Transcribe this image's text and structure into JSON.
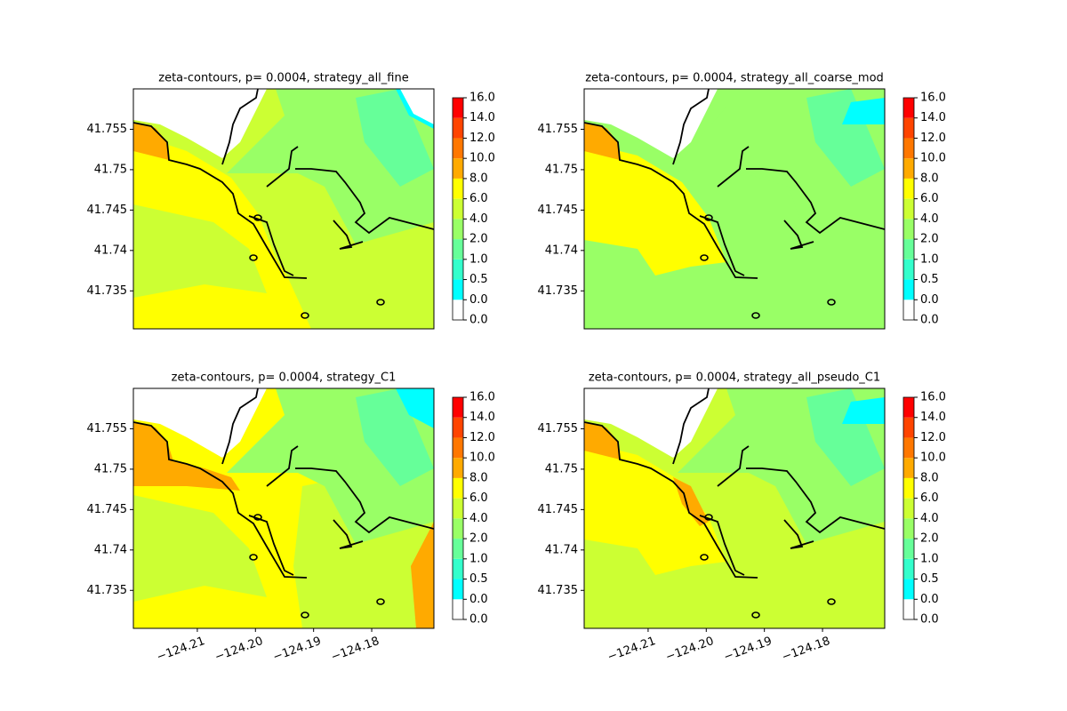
{
  "chart_data": [
    {
      "type": "contour",
      "title": "zeta-contours, p= 0.0004, strategy_all_fine",
      "xlim": [
        -124.221,
        -124.1693
      ],
      "ylim": [
        41.7303,
        41.76
      ],
      "yticks": [
        41.735,
        41.74,
        41.745,
        41.75,
        41.755
      ],
      "levels": [
        {
          "value": 0,
          "label": "0.0"
        },
        {
          "value": 0.01,
          "label": "0.0"
        },
        {
          "value": 0.5,
          "label": "0.5"
        },
        {
          "value": 1,
          "label": "1.0"
        },
        {
          "value": 2,
          "label": "2.0"
        },
        {
          "value": 4,
          "label": "4.0"
        },
        {
          "value": 6,
          "label": "6.0"
        },
        {
          "value": 8,
          "label": "8.0"
        },
        {
          "value": 10,
          "label": "10.0"
        },
        {
          "value": 12,
          "label": "12.0"
        },
        {
          "value": 14,
          "label": "14.0"
        },
        {
          "value": 16,
          "label": "16.0"
        }
      ],
      "colors": [
        "#ffffff",
        "#00ffff",
        "#33ffcc",
        "#66ff99",
        "#99ff66",
        "#ccff33",
        "#ffff00",
        "#ffaa00",
        "#ff7700",
        "#ff4400",
        "#ff0000"
      ]
    },
    {
      "type": "contour",
      "title": "zeta-contours, p= 0.0004, strategy_all_coarse_mod",
      "xlim": [
        -124.221,
        -124.1693
      ],
      "ylim": [
        41.7303,
        41.76
      ],
      "yticks": [
        41.735,
        41.74,
        41.745,
        41.75,
        41.755
      ],
      "levels": [
        {
          "value": 0,
          "label": "0.0"
        },
        {
          "value": 0.01,
          "label": "0.0"
        },
        {
          "value": 0.5,
          "label": "0.5"
        },
        {
          "value": 1,
          "label": "1.0"
        },
        {
          "value": 2,
          "label": "2.0"
        },
        {
          "value": 4,
          "label": "4.0"
        },
        {
          "value": 6,
          "label": "6.0"
        },
        {
          "value": 8,
          "label": "8.0"
        },
        {
          "value": 10,
          "label": "10.0"
        },
        {
          "value": 12,
          "label": "12.0"
        },
        {
          "value": 14,
          "label": "14.0"
        },
        {
          "value": 16,
          "label": "16.0"
        }
      ],
      "colors": [
        "#ffffff",
        "#00ffff",
        "#33ffcc",
        "#66ff99",
        "#99ff66",
        "#ccff33",
        "#ffff00",
        "#ffaa00",
        "#ff7700",
        "#ff4400",
        "#ff0000"
      ]
    },
    {
      "type": "contour",
      "title": "zeta-contours, p= 0.0004, strategy_C1",
      "xlim": [
        -124.221,
        -124.1693
      ],
      "ylim": [
        41.7303,
        41.76
      ],
      "xticks": [
        {
          "value": -124.21,
          "label": "−124.21"
        },
        {
          "value": -124.2,
          "label": "−124.20"
        },
        {
          "value": -124.19,
          "label": "−124.19"
        },
        {
          "value": -124.18,
          "label": "−124.18"
        }
      ],
      "yticks": [
        41.735,
        41.74,
        41.745,
        41.75,
        41.755
      ],
      "levels": [
        {
          "value": 0,
          "label": "0.0"
        },
        {
          "value": 0.01,
          "label": "0.0"
        },
        {
          "value": 0.5,
          "label": "0.5"
        },
        {
          "value": 1,
          "label": "1.0"
        },
        {
          "value": 2,
          "label": "2.0"
        },
        {
          "value": 4,
          "label": "4.0"
        },
        {
          "value": 6,
          "label": "6.0"
        },
        {
          "value": 8,
          "label": "8.0"
        },
        {
          "value": 10,
          "label": "10.0"
        },
        {
          "value": 12,
          "label": "12.0"
        },
        {
          "value": 14,
          "label": "14.0"
        },
        {
          "value": 16,
          "label": "16.0"
        }
      ],
      "colors": [
        "#ffffff",
        "#00ffff",
        "#33ffcc",
        "#66ff99",
        "#99ff66",
        "#ccff33",
        "#ffff00",
        "#ffaa00",
        "#ff7700",
        "#ff4400",
        "#ff0000"
      ]
    },
    {
      "type": "contour",
      "title": "zeta-contours, p= 0.0004, strategy_all_pseudo_C1",
      "xlim": [
        -124.221,
        -124.1693
      ],
      "ylim": [
        41.7303,
        41.76
      ],
      "xticks": [
        {
          "value": -124.21,
          "label": "−124.21"
        },
        {
          "value": -124.2,
          "label": "−124.20"
        },
        {
          "value": -124.19,
          "label": "−124.19"
        },
        {
          "value": -124.18,
          "label": "−124.18"
        }
      ],
      "yticks": [
        41.735,
        41.74,
        41.745,
        41.75,
        41.755
      ],
      "levels": [
        {
          "value": 0,
          "label": "0.0"
        },
        {
          "value": 0.01,
          "label": "0.0"
        },
        {
          "value": 0.5,
          "label": "0.5"
        },
        {
          "value": 1,
          "label": "1.0"
        },
        {
          "value": 2,
          "label": "2.0"
        },
        {
          "value": 4,
          "label": "4.0"
        },
        {
          "value": 6,
          "label": "6.0"
        },
        {
          "value": 8,
          "label": "8.0"
        },
        {
          "value": 10,
          "label": "10.0"
        },
        {
          "value": 12,
          "label": "12.0"
        },
        {
          "value": 14,
          "label": "14.0"
        },
        {
          "value": 16,
          "label": "16.0"
        }
      ],
      "colors": [
        "#ffffff",
        "#00ffff",
        "#33ffcc",
        "#66ff99",
        "#99ff66",
        "#ccff33",
        "#ffff00",
        "#ffaa00",
        "#ff7700",
        "#ff4400",
        "#ff0000"
      ]
    }
  ]
}
